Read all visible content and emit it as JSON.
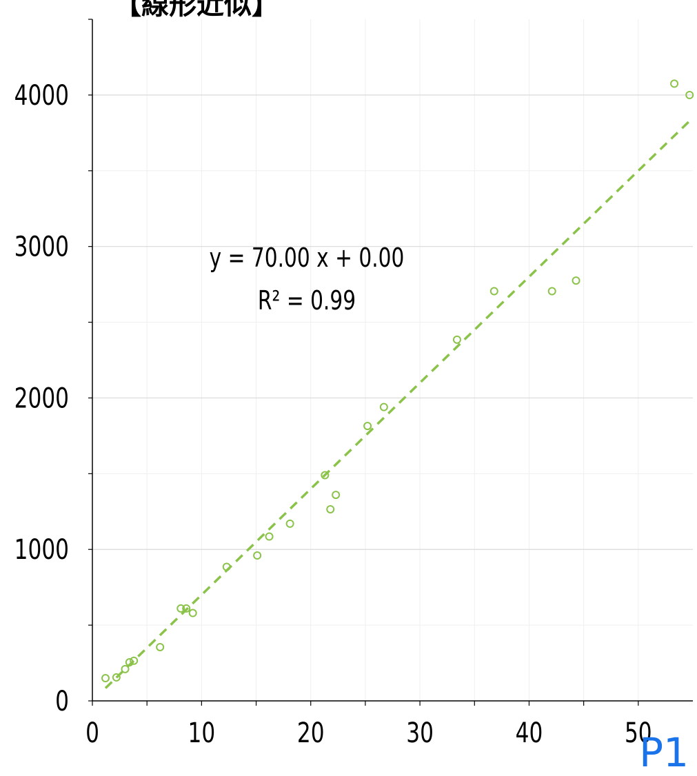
{
  "chart_data": {
    "type": "scatter",
    "title": "【線形近似】",
    "xlabel": "",
    "ylabel": "",
    "xlim": [
      0,
      55
    ],
    "ylim": [
      0,
      4500
    ],
    "x_ticks": [
      "0",
      "10",
      "20",
      "30",
      "40",
      "50"
    ],
    "y_ticks": [
      "0",
      "1000",
      "2000",
      "3000",
      "4000"
    ],
    "x_tick_values": [
      0,
      10,
      20,
      30,
      40,
      50
    ],
    "y_tick_values": [
      0,
      1000,
      2000,
      3000,
      4000
    ],
    "x_minor_values": [
      5,
      15,
      25,
      35,
      45
    ],
    "y_minor_values": [
      500,
      1500,
      2500,
      3500
    ],
    "grid": true,
    "legend": "none",
    "series": [
      {
        "points": [
          {
            "x": 1.2,
            "y": 150
          },
          {
            "x": 2.2,
            "y": 155
          },
          {
            "x": 3.0,
            "y": 210
          },
          {
            "x": 3.4,
            "y": 255
          },
          {
            "x": 3.8,
            "y": 265
          },
          {
            "x": 6.2,
            "y": 355
          },
          {
            "x": 8.1,
            "y": 610
          },
          {
            "x": 8.6,
            "y": 610
          },
          {
            "x": 9.2,
            "y": 580
          },
          {
            "x": 12.3,
            "y": 885
          },
          {
            "x": 15.1,
            "y": 960
          },
          {
            "x": 16.2,
            "y": 1085
          },
          {
            "x": 18.1,
            "y": 1170
          },
          {
            "x": 21.3,
            "y": 1490
          },
          {
            "x": 21.8,
            "y": 1265
          },
          {
            "x": 22.3,
            "y": 1360
          },
          {
            "x": 25.2,
            "y": 1815
          },
          {
            "x": 26.7,
            "y": 1940
          },
          {
            "x": 33.4,
            "y": 2385
          },
          {
            "x": 36.8,
            "y": 2705
          },
          {
            "x": 42.1,
            "y": 2705
          },
          {
            "x": 44.3,
            "y": 2775
          },
          {
            "x": 53.3,
            "y": 4075
          },
          {
            "x": 54.7,
            "y": 4000
          }
        ]
      }
    ],
    "trendline": {
      "type": "linear",
      "x_range": [
        1.2,
        55
      ],
      "slope": 70.0,
      "intercept": 0.0,
      "equation": "y = 70.00 x + 0.00",
      "r_squared": "R² = 0.99"
    },
    "colors": {
      "points": "#8bc34a",
      "trendline": "#8bc34a",
      "grid_major": "#d9d9d9",
      "grid_minor": "#efefef",
      "axis": "#000000"
    }
  },
  "page_marker": "P1"
}
